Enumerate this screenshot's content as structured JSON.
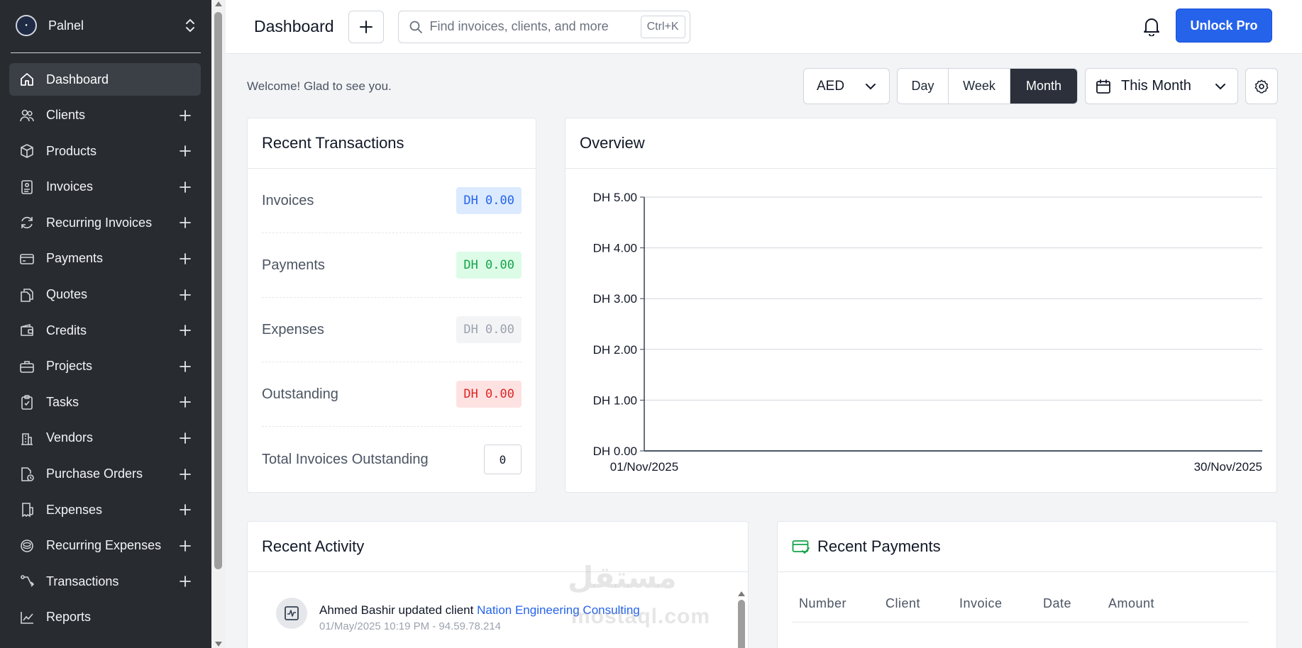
{
  "sidebar": {
    "company_name": "Palnel",
    "items": [
      {
        "label": "Dashboard",
        "icon": "home-icon",
        "active": true,
        "has_add": false
      },
      {
        "label": "Clients",
        "icon": "users-icon",
        "active": false,
        "has_add": true
      },
      {
        "label": "Products",
        "icon": "box-icon",
        "active": false,
        "has_add": true
      },
      {
        "label": "Invoices",
        "icon": "invoice-icon",
        "active": false,
        "has_add": true
      },
      {
        "label": "Recurring Invoices",
        "icon": "refresh-icon",
        "active": false,
        "has_add": true
      },
      {
        "label": "Payments",
        "icon": "credit-card-icon",
        "active": false,
        "has_add": true
      },
      {
        "label": "Quotes",
        "icon": "copy-icon",
        "active": false,
        "has_add": true
      },
      {
        "label": "Credits",
        "icon": "wallet-icon",
        "active": false,
        "has_add": true
      },
      {
        "label": "Projects",
        "icon": "briefcase-icon",
        "active": false,
        "has_add": true
      },
      {
        "label": "Tasks",
        "icon": "clipboard-check-icon",
        "active": false,
        "has_add": true
      },
      {
        "label": "Vendors",
        "icon": "building-icon",
        "active": false,
        "has_add": true
      },
      {
        "label": "Purchase Orders",
        "icon": "file-clock-icon",
        "active": false,
        "has_add": true
      },
      {
        "label": "Expenses",
        "icon": "receipt-icon",
        "active": false,
        "has_add": true
      },
      {
        "label": "Recurring Expenses",
        "icon": "coins-icon",
        "active": false,
        "has_add": true
      },
      {
        "label": "Transactions",
        "icon": "arrows-icon",
        "active": false,
        "has_add": true
      },
      {
        "label": "Reports",
        "icon": "chart-line-icon",
        "active": false,
        "has_add": false
      }
    ]
  },
  "header": {
    "title": "Dashboard",
    "search_placeholder": "Find invoices, clients, and more",
    "search_shortcut": "Ctrl+K",
    "unlock_label": "Unlock Pro"
  },
  "controls": {
    "welcome": "Welcome! Glad to see you.",
    "currency": "AED",
    "periods": [
      "Day",
      "Week",
      "Month"
    ],
    "active_period": "Month",
    "range": "This Month"
  },
  "recent_transactions": {
    "title": "Recent Transactions",
    "rows": [
      {
        "label": "Invoices",
        "value": "DH 0.00",
        "color": "blue"
      },
      {
        "label": "Payments",
        "value": "DH 0.00",
        "color": "green"
      },
      {
        "label": "Expenses",
        "value": "DH 0.00",
        "color": "gray"
      },
      {
        "label": "Outstanding",
        "value": "DH 0.00",
        "color": "red"
      }
    ],
    "total_label": "Total Invoices Outstanding",
    "total_value": "0"
  },
  "overview": {
    "title": "Overview"
  },
  "chart_data": {
    "type": "line",
    "title": "",
    "xlabel": "",
    "ylabel": "",
    "x": [
      "01/Nov/2025",
      "30/Nov/2025"
    ],
    "series": [
      {
        "values": [
          0.0,
          0.0
        ]
      }
    ],
    "yticks": [
      "DH 5.00",
      "DH 4.00",
      "DH 3.00",
      "DH 2.00",
      "DH 1.00",
      "DH 0.00"
    ],
    "ylim": [
      0,
      5
    ],
    "grid": true
  },
  "recent_activity": {
    "title": "Recent Activity",
    "items": [
      {
        "actor_text": "Ahmed Bashir updated client ",
        "link": "Nation Engineering Consulting",
        "meta": "01/May/2025 10:19 PM - 94.59.78.214"
      }
    ]
  },
  "recent_payments": {
    "title": "Recent Payments",
    "columns": [
      "Number",
      "Client",
      "Invoice",
      "Date",
      "Amount"
    ]
  },
  "watermark": {
    "arabic": "مستقل",
    "latin": "mostaql.com"
  }
}
